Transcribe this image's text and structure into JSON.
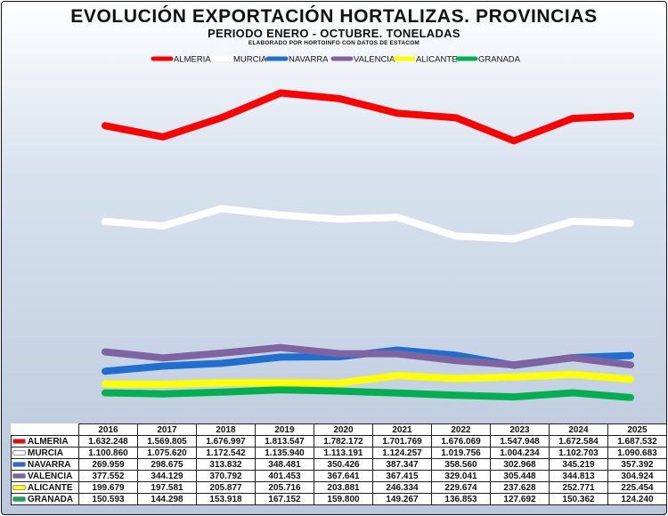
{
  "chart_data": {
    "type": "line",
    "title": "EVOLUCIÓN EXPORTACIÓN HORTALIZAS. PROVINCIAS",
    "subtitle": "PERIODO ENERO - OCTUBRE. TONELADAS",
    "source": "ELABORADO POR HORTOINFO CON DATOS DE ESTACOM",
    "legend_position": "top",
    "categories": [
      "2016",
      "2017",
      "2018",
      "2019",
      "2020",
      "2021",
      "2022",
      "2023",
      "2024",
      "2025"
    ],
    "series": [
      {
        "name": "ALMERIA",
        "color": "#ff0000",
        "values": [
          1632248,
          1569805,
          1676997,
          1813547,
          1782172,
          1701769,
          1676069,
          1547948,
          1672584,
          1687532
        ],
        "labels": [
          "1.632.248",
          "1.569.805",
          "1.676.997",
          "1.813.547",
          "1.782.172",
          "1.701.769",
          "1.676.069",
          "1.547.948",
          "1.672.584",
          "1.687.532"
        ]
      },
      {
        "name": "MURCIA",
        "color": "#ffffff",
        "values": [
          1100860,
          1075620,
          1172542,
          1135940,
          1113191,
          1124257,
          1019756,
          1004234,
          1102703,
          1090683
        ],
        "labels": [
          "1.100.860",
          "1.075.620",
          "1.172.542",
          "1.135.940",
          "1.113.191",
          "1.124.257",
          "1.019.756",
          "1.004.234",
          "1.102.703",
          "1.090.683"
        ]
      },
      {
        "name": "NAVARRA",
        "color": "#1f6fd0",
        "values": [
          269959,
          298675,
          313832,
          348481,
          350426,
          387347,
          358560,
          302968,
          345219,
          357392
        ],
        "labels": [
          "269.959",
          "298.675",
          "313.832",
          "348.481",
          "350.426",
          "387.347",
          "358.560",
          "302.968",
          "345.219",
          "357.392"
        ]
      },
      {
        "name": "VALENCIA",
        "color": "#8064a2",
        "values": [
          377552,
          344129,
          370792,
          401453,
          367641,
          367415,
          329041,
          305448,
          344813,
          304924
        ],
        "labels": [
          "377.552",
          "344.129",
          "370.792",
          "401.453",
          "367.641",
          "367.415",
          "329.041",
          "305.448",
          "344.813",
          "304.924"
        ]
      },
      {
        "name": "ALICANTE",
        "color": "#ffff00",
        "values": [
          199679,
          197581,
          205877,
          205716,
          203881,
          246334,
          229674,
          237628,
          252771,
          225454
        ],
        "labels": [
          "199.679",
          "197.581",
          "205.877",
          "205.716",
          "203.881",
          "246.334",
          "229.674",
          "237.628",
          "252.771",
          "225.454"
        ]
      },
      {
        "name": "GRANADA",
        "color": "#00b050",
        "values": [
          150593,
          144298,
          153918,
          167152,
          159800,
          149267,
          136853,
          127692,
          150362,
          124240
        ],
        "labels": [
          "150.593",
          "144.298",
          "153.918",
          "167.152",
          "159.800",
          "149.267",
          "136.853",
          "127.692",
          "150.362",
          "124.240"
        ]
      }
    ]
  }
}
